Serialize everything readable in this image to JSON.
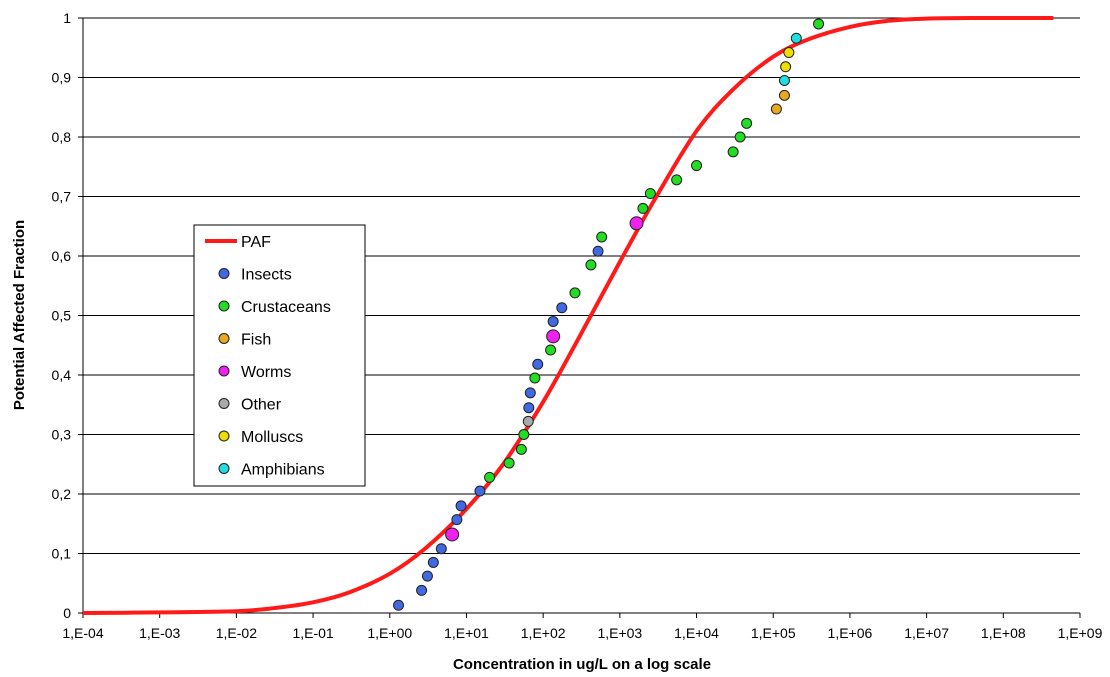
{
  "chart_data": {
    "type": "scatter",
    "xscale": "log",
    "xlabel": "Concentration  in ug/L on a log scale",
    "ylabel": "Potential  Affected  Fraction",
    "xlim": [
      0.0001,
      1000000000
    ],
    "ylim": [
      0,
      1
    ],
    "grid": "horizontal",
    "legend_placement": "center-left",
    "x_ticks": [
      0.0001,
      0.001,
      0.01,
      0.1,
      1,
      10,
      100,
      1000,
      10000,
      100000,
      1000000,
      10000000,
      100000000,
      1000000000
    ],
    "x_tick_labels": [
      "1,E-04",
      "1,E-03",
      "1,E-02",
      "1,E-01",
      "1,E+00",
      "1,E+01",
      "1,E+02",
      "1,E+03",
      "1,E+04",
      "1,E+05",
      "1,E+06",
      "1,E+07",
      "1,E+08",
      "1,E+09"
    ],
    "y_ticks": [
      0,
      0.1,
      0.2,
      0.3,
      0.4,
      0.5,
      0.6,
      0.7,
      0.8,
      0.9,
      1
    ],
    "y_tick_labels": [
      "0",
      "0,1",
      "0,2",
      "0,3",
      "0,4",
      "0,5",
      "0,6",
      "0,7",
      "0,8",
      "0,9",
      "1"
    ],
    "curve": {
      "name": "PAF",
      "color": "#ff1a1a",
      "x": [
        0.0001,
        0.001,
        0.01,
        0.03,
        0.1,
        0.3,
        1,
        3,
        10,
        30,
        100,
        300,
        1000,
        3000,
        10000,
        30000,
        100000,
        300000,
        1000000,
        3000000,
        10000000,
        50000000,
        450000000
      ],
      "y": [
        0,
        0.001,
        0.003,
        0.008,
        0.018,
        0.035,
        0.066,
        0.11,
        0.175,
        0.25,
        0.355,
        0.465,
        0.59,
        0.7,
        0.81,
        0.88,
        0.935,
        0.965,
        0.985,
        0.995,
        0.999,
        1.0,
        1.0
      ]
    },
    "series": [
      {
        "name": "Insects",
        "color": "#4169e1",
        "points": [
          [
            1.3,
            0.013
          ],
          [
            2.6,
            0.038
          ],
          [
            3.1,
            0.062
          ],
          [
            3.7,
            0.085
          ],
          [
            4.7,
            0.108
          ],
          [
            7.5,
            0.157
          ],
          [
            8.5,
            0.18
          ],
          [
            15,
            0.205
          ],
          [
            65,
            0.345
          ],
          [
            68,
            0.37
          ],
          [
            85,
            0.418
          ],
          [
            135,
            0.49
          ],
          [
            175,
            0.513
          ],
          [
            520,
            0.608
          ]
        ]
      },
      {
        "name": "Crustaceans",
        "color": "#22dd22",
        "points": [
          [
            20,
            0.228
          ],
          [
            36,
            0.252
          ],
          [
            52,
            0.275
          ],
          [
            56,
            0.3
          ],
          [
            78,
            0.395
          ],
          [
            125,
            0.442
          ],
          [
            260,
            0.538
          ],
          [
            420,
            0.585
          ],
          [
            580,
            0.632
          ],
          [
            2000,
            0.68
          ],
          [
            2500,
            0.705
          ],
          [
            5500,
            0.728
          ],
          [
            10000,
            0.752
          ],
          [
            30000,
            0.775
          ],
          [
            37000,
            0.8
          ],
          [
            45000,
            0.823
          ],
          [
            390000,
            0.99
          ]
        ]
      },
      {
        "name": "Fish",
        "color": "#e8a820",
        "points": [
          [
            110000,
            0.847
          ],
          [
            140000,
            0.87
          ]
        ]
      },
      {
        "name": "Worms",
        "color": "#ee22ee",
        "points": [
          [
            6.5,
            0.132
          ],
          [
            135,
            0.465
          ],
          [
            1650,
            0.655
          ]
        ]
      },
      {
        "name": "Other",
        "color": "#aaaaaa",
        "points": [
          [
            64,
            0.322
          ]
        ]
      },
      {
        "name": "Molluscs",
        "color": "#eedd00",
        "points": [
          [
            145000,
            0.918
          ],
          [
            160000,
            0.942
          ]
        ]
      },
      {
        "name": "Amphibians",
        "color": "#22dddd",
        "points": [
          [
            140000,
            0.895
          ],
          [
            200000,
            0.966
          ]
        ]
      }
    ]
  }
}
